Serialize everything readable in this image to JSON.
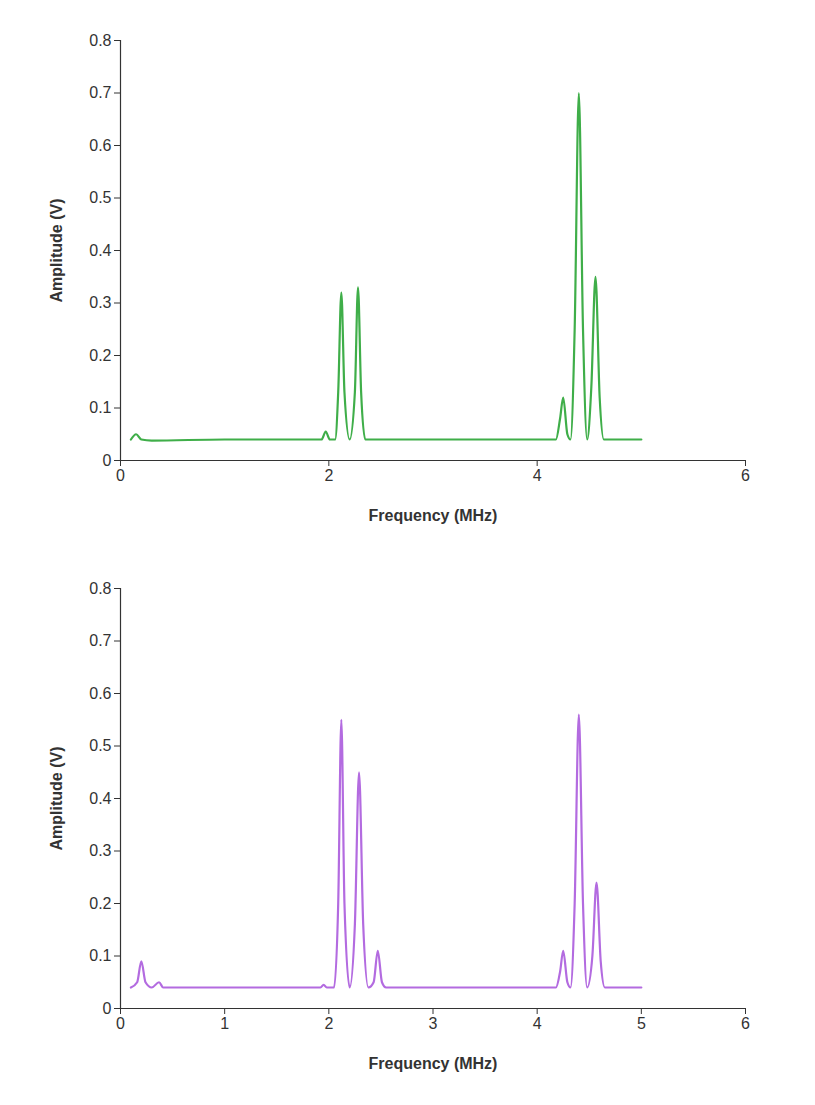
{
  "chart_data": [
    {
      "type": "line",
      "x_label": "Frequency (MHz)",
      "y_label": "Amplitude (V)",
      "color": "#3fae49",
      "xlim": [
        0,
        6
      ],
      "xticks": [
        0,
        2,
        4,
        6
      ],
      "ylim": [
        0,
        0.8
      ],
      "yticks": [
        0,
        0.1,
        0.2,
        0.3,
        0.4,
        0.5,
        0.6,
        0.7,
        0.8
      ],
      "grid": false,
      "x": [
        0.1,
        0.15,
        0.2,
        0.3,
        1.0,
        1.93,
        1.97,
        2.01,
        2.06,
        2.09,
        2.12,
        2.15,
        2.2,
        2.25,
        2.28,
        2.31,
        2.35,
        3.0,
        4.18,
        4.22,
        4.25,
        4.29,
        4.32,
        4.36,
        4.4,
        4.44,
        4.48,
        4.52,
        4.56,
        4.6,
        4.64,
        5.0
      ],
      "values": [
        0.04,
        0.05,
        0.04,
        0.038,
        0.04,
        0.04,
        0.055,
        0.04,
        0.04,
        0.13,
        0.32,
        0.13,
        0.04,
        0.13,
        0.33,
        0.13,
        0.04,
        0.04,
        0.04,
        0.08,
        0.12,
        0.05,
        0.04,
        0.25,
        0.7,
        0.25,
        0.04,
        0.14,
        0.35,
        0.12,
        0.04,
        0.04
      ]
    },
    {
      "type": "line",
      "x_label": "Frequency (MHz)",
      "y_label": "Amplitude (V)",
      "color": "#b36be0",
      "xlim": [
        0,
        6
      ],
      "xticks": [
        0,
        1,
        2,
        3,
        4,
        5,
        6
      ],
      "ylim": [
        0,
        0.8
      ],
      "yticks": [
        0,
        0.1,
        0.2,
        0.3,
        0.4,
        0.5,
        0.6,
        0.7,
        0.8
      ],
      "grid": false,
      "x": [
        0.1,
        0.16,
        0.2,
        0.24,
        0.3,
        0.37,
        0.41,
        1.0,
        1.92,
        1.95,
        1.98,
        2.05,
        2.09,
        2.12,
        2.15,
        2.2,
        2.25,
        2.29,
        2.33,
        2.38,
        2.43,
        2.47,
        2.51,
        2.55,
        3.0,
        4.18,
        4.22,
        4.25,
        4.29,
        4.32,
        4.36,
        4.4,
        4.44,
        4.48,
        4.53,
        4.57,
        4.61,
        4.65,
        5.0
      ],
      "values": [
        0.04,
        0.05,
        0.09,
        0.05,
        0.04,
        0.05,
        0.04,
        0.04,
        0.04,
        0.045,
        0.04,
        0.04,
        0.2,
        0.55,
        0.2,
        0.04,
        0.16,
        0.45,
        0.16,
        0.04,
        0.05,
        0.11,
        0.05,
        0.04,
        0.04,
        0.04,
        0.07,
        0.11,
        0.05,
        0.04,
        0.2,
        0.56,
        0.2,
        0.04,
        0.1,
        0.24,
        0.09,
        0.04,
        0.04
      ]
    }
  ]
}
